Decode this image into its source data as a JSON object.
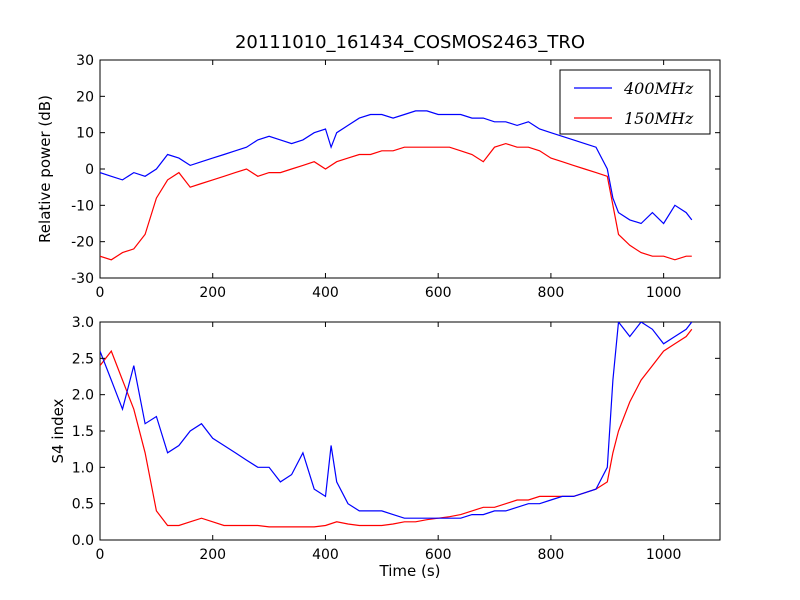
{
  "chart_data": [
    {
      "type": "line",
      "title": "20111010_161434_COSMOS2463_TRO",
      "xlabel": "",
      "ylabel": "Relative power (dB)",
      "xlim": [
        0,
        1100
      ],
      "ylim": [
        -30,
        30
      ],
      "xticks": [
        0,
        200,
        400,
        600,
        800,
        1000
      ],
      "yticks": [
        -30,
        -20,
        -10,
        0,
        10,
        20,
        30
      ],
      "legend_position": "top-right",
      "series": [
        {
          "name": "400MHz",
          "color": "#0000ff",
          "x": [
            0,
            20,
            40,
            60,
            80,
            100,
            120,
            140,
            160,
            180,
            200,
            220,
            240,
            260,
            280,
            300,
            320,
            340,
            360,
            380,
            400,
            410,
            420,
            440,
            460,
            480,
            500,
            520,
            540,
            560,
            580,
            600,
            620,
            640,
            660,
            680,
            700,
            720,
            740,
            760,
            780,
            800,
            820,
            840,
            860,
            880,
            900,
            910,
            920,
            940,
            960,
            980,
            1000,
            1020,
            1040,
            1050
          ],
          "y": [
            -1,
            -2,
            -3,
            -1,
            -2,
            0,
            4,
            3,
            1,
            2,
            3,
            4,
            5,
            6,
            8,
            9,
            8,
            7,
            8,
            10,
            11,
            6,
            10,
            12,
            14,
            15,
            15,
            14,
            15,
            16,
            16,
            15,
            15,
            15,
            14,
            14,
            13,
            13,
            12,
            13,
            11,
            10,
            9,
            8,
            7,
            6,
            0,
            -8,
            -12,
            -14,
            -15,
            -12,
            -15,
            -10,
            -12,
            -14
          ]
        },
        {
          "name": "150MHz",
          "color": "#ff0000",
          "x": [
            0,
            20,
            40,
            60,
            80,
            100,
            120,
            140,
            160,
            180,
            200,
            220,
            240,
            260,
            280,
            300,
            320,
            340,
            360,
            380,
            400,
            420,
            440,
            460,
            480,
            500,
            520,
            540,
            560,
            580,
            600,
            620,
            640,
            660,
            680,
            700,
            720,
            740,
            760,
            780,
            800,
            820,
            840,
            860,
            880,
            900,
            910,
            920,
            940,
            960,
            980,
            1000,
            1020,
            1040,
            1050
          ],
          "y": [
            -24,
            -25,
            -23,
            -22,
            -18,
            -8,
            -3,
            -1,
            -5,
            -4,
            -3,
            -2,
            -1,
            0,
            -2,
            -1,
            -1,
            0,
            1,
            2,
            0,
            2,
            3,
            4,
            4,
            5,
            5,
            6,
            6,
            6,
            6,
            6,
            5,
            4,
            2,
            6,
            7,
            6,
            6,
            5,
            3,
            2,
            1,
            0,
            -1,
            -2,
            -10,
            -18,
            -21,
            -23,
            -24,
            -24,
            -25,
            -24,
            -24
          ]
        }
      ]
    },
    {
      "type": "line",
      "title": "",
      "xlabel": "Time (s)",
      "ylabel": "S4 index",
      "xlim": [
        0,
        1100
      ],
      "ylim": [
        0,
        3
      ],
      "xticks": [
        0,
        200,
        400,
        600,
        800,
        1000
      ],
      "yticks": [
        0.0,
        0.5,
        1.0,
        1.5,
        2.0,
        2.5,
        3.0
      ],
      "series": [
        {
          "name": "400MHz",
          "color": "#0000ff",
          "x": [
            0,
            20,
            40,
            60,
            80,
            100,
            120,
            140,
            160,
            180,
            200,
            220,
            240,
            260,
            280,
            300,
            320,
            340,
            360,
            380,
            400,
            410,
            420,
            440,
            460,
            480,
            500,
            520,
            540,
            560,
            580,
            600,
            620,
            640,
            660,
            680,
            700,
            720,
            740,
            760,
            780,
            800,
            820,
            840,
            860,
            880,
            900,
            910,
            920,
            940,
            960,
            980,
            1000,
            1020,
            1040,
            1050
          ],
          "y": [
            2.6,
            2.2,
            1.8,
            2.4,
            1.6,
            1.7,
            1.2,
            1.3,
            1.5,
            1.6,
            1.4,
            1.3,
            1.2,
            1.1,
            1.0,
            1.0,
            0.8,
            0.9,
            1.2,
            0.7,
            0.6,
            1.3,
            0.8,
            0.5,
            0.4,
            0.4,
            0.4,
            0.35,
            0.3,
            0.3,
            0.3,
            0.3,
            0.3,
            0.3,
            0.35,
            0.35,
            0.4,
            0.4,
            0.45,
            0.5,
            0.5,
            0.55,
            0.6,
            0.6,
            0.65,
            0.7,
            1.0,
            2.2,
            3.0,
            2.8,
            3.0,
            2.9,
            2.7,
            2.8,
            2.9,
            3.0
          ]
        },
        {
          "name": "150MHz",
          "color": "#ff0000",
          "x": [
            0,
            20,
            40,
            60,
            80,
            100,
            120,
            140,
            160,
            180,
            200,
            220,
            240,
            260,
            280,
            300,
            320,
            340,
            360,
            380,
            400,
            420,
            440,
            460,
            480,
            500,
            520,
            540,
            560,
            580,
            600,
            620,
            640,
            660,
            680,
            700,
            720,
            740,
            760,
            780,
            800,
            820,
            840,
            860,
            880,
            900,
            910,
            920,
            940,
            960,
            980,
            1000,
            1020,
            1040,
            1050
          ],
          "y": [
            2.4,
            2.6,
            2.2,
            1.8,
            1.2,
            0.4,
            0.2,
            0.2,
            0.25,
            0.3,
            0.25,
            0.2,
            0.2,
            0.2,
            0.2,
            0.18,
            0.18,
            0.18,
            0.18,
            0.18,
            0.2,
            0.25,
            0.22,
            0.2,
            0.2,
            0.2,
            0.22,
            0.25,
            0.25,
            0.28,
            0.3,
            0.32,
            0.35,
            0.4,
            0.45,
            0.45,
            0.5,
            0.55,
            0.55,
            0.6,
            0.6,
            0.6,
            0.6,
            0.65,
            0.7,
            0.8,
            1.2,
            1.5,
            1.9,
            2.2,
            2.4,
            2.6,
            2.7,
            2.8,
            2.9
          ]
        }
      ]
    }
  ]
}
